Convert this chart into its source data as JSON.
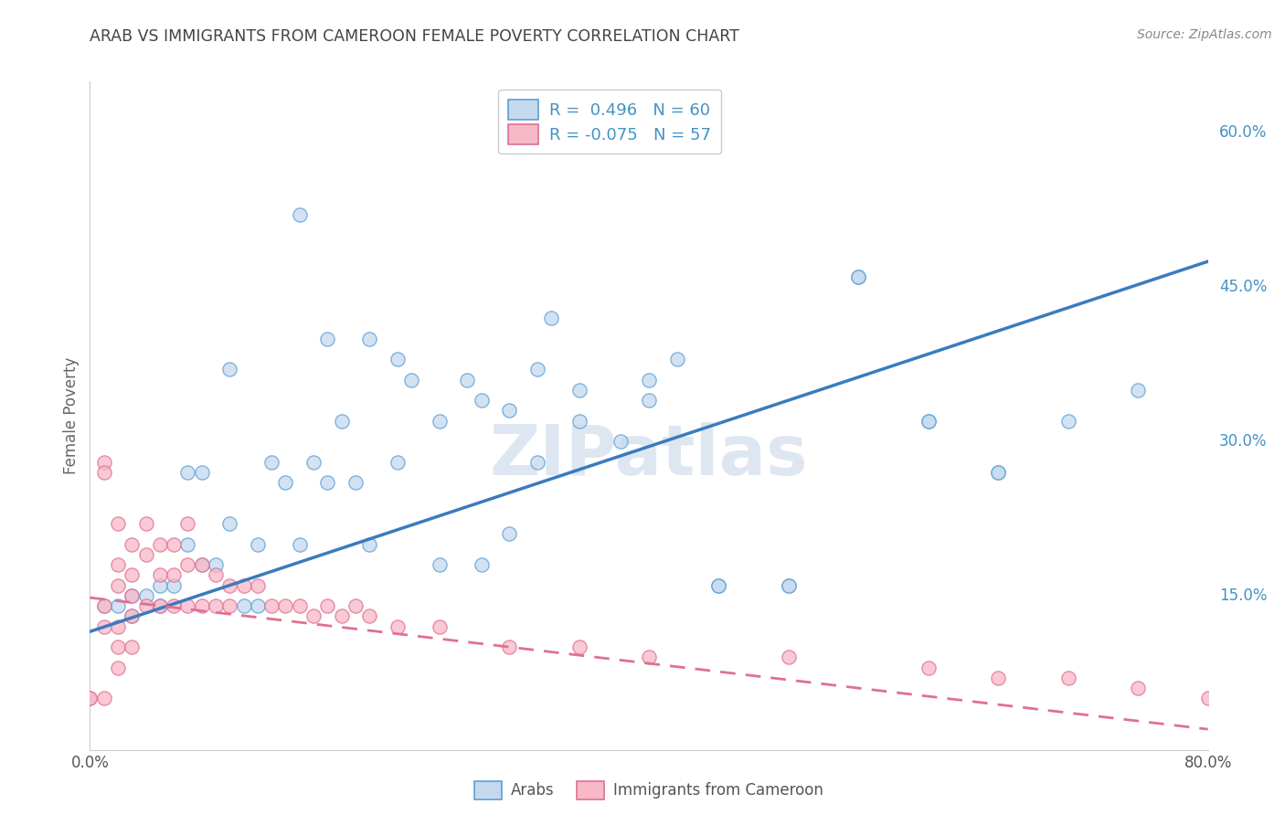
{
  "title": "ARAB VS IMMIGRANTS FROM CAMEROON FEMALE POVERTY CORRELATION CHART",
  "source": "Source: ZipAtlas.com",
  "ylabel": "Female Poverty",
  "xlim": [
    0,
    0.8
  ],
  "ylim": [
    0,
    0.65
  ],
  "y_ticks_right": [
    0.15,
    0.3,
    0.45,
    0.6
  ],
  "y_tick_labels_right": [
    "15.0%",
    "30.0%",
    "45.0%",
    "60.0%"
  ],
  "watermark": "ZIPatlas",
  "legend_line1": "R =  0.496   N = 60",
  "legend_line2": "R = -0.075   N = 57",
  "arab_fill": "#c5d9ee",
  "arab_edge": "#5b9fd4",
  "cam_fill": "#f7b8c8",
  "cam_edge": "#e07090",
  "line_blue": "#3a7bbf",
  "line_pink": "#e07090",
  "blue_line_x": [
    0.0,
    0.8
  ],
  "blue_line_y": [
    0.115,
    0.475
  ],
  "pink_line_x": [
    0.0,
    0.8
  ],
  "pink_line_y": [
    0.148,
    0.02
  ],
  "arab_scatter_x": [
    0.1,
    0.15,
    0.17,
    0.2,
    0.22,
    0.23,
    0.25,
    0.27,
    0.28,
    0.3,
    0.32,
    0.33,
    0.35,
    0.38,
    0.4,
    0.42,
    0.45,
    0.5,
    0.55,
    0.6,
    0.65,
    0.7,
    0.01,
    0.02,
    0.03,
    0.03,
    0.04,
    0.05,
    0.05,
    0.06,
    0.07,
    0.07,
    0.08,
    0.08,
    0.09,
    0.1,
    0.11,
    0.12,
    0.12,
    0.13,
    0.14,
    0.15,
    0.16,
    0.17,
    0.18,
    0.19,
    0.2,
    0.22,
    0.25,
    0.28,
    0.3,
    0.32,
    0.35,
    0.4,
    0.45,
    0.5,
    0.55,
    0.6,
    0.65,
    0.75
  ],
  "arab_scatter_y": [
    0.37,
    0.52,
    0.4,
    0.4,
    0.38,
    0.36,
    0.32,
    0.36,
    0.34,
    0.33,
    0.37,
    0.42,
    0.32,
    0.3,
    0.34,
    0.38,
    0.16,
    0.16,
    0.46,
    0.32,
    0.27,
    0.32,
    0.14,
    0.14,
    0.15,
    0.13,
    0.15,
    0.14,
    0.16,
    0.16,
    0.2,
    0.27,
    0.18,
    0.27,
    0.18,
    0.22,
    0.14,
    0.14,
    0.2,
    0.28,
    0.26,
    0.2,
    0.28,
    0.26,
    0.32,
    0.26,
    0.2,
    0.28,
    0.18,
    0.18,
    0.21,
    0.28,
    0.35,
    0.36,
    0.16,
    0.16,
    0.46,
    0.32,
    0.27,
    0.35
  ],
  "cam_scatter_x": [
    0.0,
    0.0,
    0.01,
    0.01,
    0.01,
    0.01,
    0.01,
    0.02,
    0.02,
    0.02,
    0.02,
    0.02,
    0.02,
    0.03,
    0.03,
    0.03,
    0.03,
    0.03,
    0.04,
    0.04,
    0.04,
    0.05,
    0.05,
    0.05,
    0.06,
    0.06,
    0.06,
    0.07,
    0.07,
    0.07,
    0.08,
    0.08,
    0.09,
    0.09,
    0.1,
    0.1,
    0.11,
    0.12,
    0.13,
    0.14,
    0.15,
    0.16,
    0.17,
    0.18,
    0.19,
    0.2,
    0.22,
    0.25,
    0.3,
    0.35,
    0.4,
    0.5,
    0.6,
    0.65,
    0.7,
    0.75,
    0.8
  ],
  "cam_scatter_y": [
    0.05,
    0.05,
    0.28,
    0.27,
    0.14,
    0.12,
    0.05,
    0.22,
    0.18,
    0.16,
    0.12,
    0.1,
    0.08,
    0.2,
    0.17,
    0.15,
    0.13,
    0.1,
    0.22,
    0.19,
    0.14,
    0.2,
    0.17,
    0.14,
    0.2,
    0.17,
    0.14,
    0.22,
    0.18,
    0.14,
    0.18,
    0.14,
    0.17,
    0.14,
    0.16,
    0.14,
    0.16,
    0.16,
    0.14,
    0.14,
    0.14,
    0.13,
    0.14,
    0.13,
    0.14,
    0.13,
    0.12,
    0.12,
    0.1,
    0.1,
    0.09,
    0.09,
    0.08,
    0.07,
    0.07,
    0.06,
    0.05
  ],
  "background_color": "#ffffff",
  "grid_color": "#cccccc",
  "title_color": "#444444",
  "axis_label_color": "#666666",
  "right_tick_color": "#4393c3",
  "source_color": "#888888"
}
